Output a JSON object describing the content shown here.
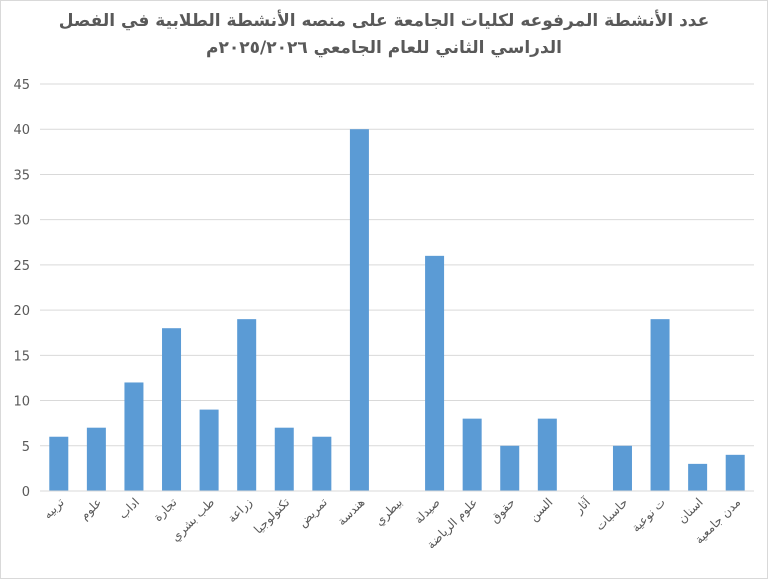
{
  "chart_data": {
    "type": "bar",
    "title": "عدد الأنشطة المرفوعه لكليات الجامعة على منصه الأنشطة الطلابية في الفصل",
    "subtitle": "الدراسي الثاني للعام الجامعي ٢٠٢٥/٢٠٢٦م",
    "xlabel": "",
    "ylabel": "",
    "ylim": [
      0,
      45
    ],
    "yticks": [
      "0",
      "5",
      "10",
      "15",
      "20",
      "25",
      "30",
      "35",
      "40",
      "45"
    ],
    "grid": true,
    "legend": "none",
    "bar_color": "#5b9bd5",
    "categories": [
      "تربيه",
      "علوم",
      "اداب",
      "تجارة",
      "طب بشري",
      "زراعة",
      "تكنولوجيا",
      "تمريض",
      "هندسة",
      "بيطري",
      "صيدلة",
      "علوم الرياضة",
      "حقوق",
      "السن",
      "آثار",
      "حاسبات",
      "ت نوعية",
      "اسنان",
      "مدن جامعية"
    ],
    "values": [
      6,
      7,
      12,
      18,
      9,
      19,
      7,
      6,
      40,
      0,
      26,
      8,
      5,
      8,
      0,
      5,
      19,
      3,
      4
    ]
  }
}
